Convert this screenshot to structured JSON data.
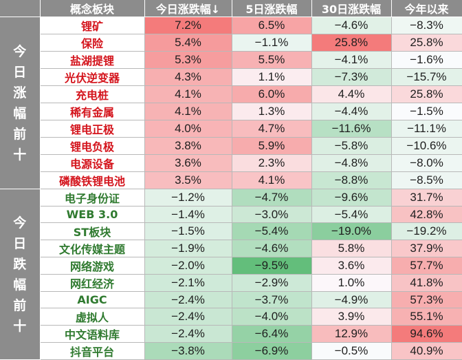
{
  "header": {
    "group": "",
    "name": "概念板块",
    "today": "今日涨跌幅↓",
    "d5": "5日涨跌幅",
    "d30": "30日涨跌幅",
    "ytd": "今年以来"
  },
  "groups": [
    {
      "label": [
        "今",
        "日",
        "涨",
        "幅",
        "前",
        "十"
      ],
      "direction": "up"
    },
    {
      "label": [
        "今",
        "日",
        "跌",
        "幅",
        "前",
        "十"
      ],
      "direction": "down"
    }
  ],
  "rows": [
    {
      "name": "锂矿",
      "today": "7.2%",
      "d5": "6.5%",
      "d30": "−4.6%",
      "ytd": "−8.3%",
      "v": [
        7.2,
        6.5,
        -4.6,
        -8.3
      ]
    },
    {
      "name": "保险",
      "today": "5.4%",
      "d5": "−1.1%",
      "d30": "25.8%",
      "ytd": "25.8%",
      "v": [
        5.4,
        -1.1,
        25.8,
        25.8
      ]
    },
    {
      "name": "盐湖提锂",
      "today": "5.3%",
      "d5": "5.5%",
      "d30": "−4.1%",
      "ytd": "−1.6%",
      "v": [
        5.3,
        5.5,
        -4.1,
        -1.6
      ]
    },
    {
      "name": "光伏逆变器",
      "today": "4.3%",
      "d5": "1.1%",
      "d30": "−7.3%",
      "ytd": "−15.7%",
      "v": [
        4.3,
        1.1,
        -7.3,
        -15.7
      ]
    },
    {
      "name": "充电桩",
      "today": "4.1%",
      "d5": "6.0%",
      "d30": "4.4%",
      "ytd": "25.8%",
      "v": [
        4.1,
        6.0,
        4.4,
        25.8
      ]
    },
    {
      "name": "稀有金属",
      "today": "4.1%",
      "d5": "1.3%",
      "d30": "−4.4%",
      "ytd": "−1.5%",
      "v": [
        4.1,
        1.3,
        -4.4,
        -1.5
      ]
    },
    {
      "name": "锂电正极",
      "today": "4.0%",
      "d5": "4.7%",
      "d30": "−11.6%",
      "ytd": "−11.1%",
      "v": [
        4.0,
        4.7,
        -11.6,
        -11.1
      ]
    },
    {
      "name": "锂电负极",
      "today": "3.8%",
      "d5": "5.9%",
      "d30": "−5.8%",
      "ytd": "−10.6%",
      "v": [
        3.8,
        5.9,
        -5.8,
        -10.6
      ]
    },
    {
      "name": "电源设备",
      "today": "3.6%",
      "d5": "2.3%",
      "d30": "−4.8%",
      "ytd": "−8.0%",
      "v": [
        3.6,
        2.3,
        -4.8,
        -8.0
      ]
    },
    {
      "name": "磷酸铁锂电池",
      "today": "3.5%",
      "d5": "4.1%",
      "d30": "−8.8%",
      "ytd": "−8.5%",
      "v": [
        3.5,
        4.1,
        -8.8,
        -8.5
      ]
    },
    {
      "name": "电子身份证",
      "today": "−1.2%",
      "d5": "−4.7%",
      "d30": "−9.6%",
      "ytd": "31.7%",
      "v": [
        -1.2,
        -4.7,
        -9.6,
        31.7
      ]
    },
    {
      "name": "WEB 3.0",
      "today": "−1.4%",
      "d5": "−3.0%",
      "d30": "−5.4%",
      "ytd": "42.8%",
      "v": [
        -1.4,
        -3.0,
        -5.4,
        42.8
      ]
    },
    {
      "name": "ST板块",
      "today": "−1.5%",
      "d5": "−5.4%",
      "d30": "−19.0%",
      "ytd": "−19.2%",
      "v": [
        -1.5,
        -5.4,
        -19.0,
        -19.2
      ]
    },
    {
      "name": "文化传媒主题",
      "today": "−1.9%",
      "d5": "−4.6%",
      "d30": "5.8%",
      "ytd": "37.9%",
      "v": [
        -1.9,
        -4.6,
        5.8,
        37.9
      ]
    },
    {
      "name": "网络游戏",
      "today": "−2.0%",
      "d5": "−9.5%",
      "d30": "3.6%",
      "ytd": "57.7%",
      "v": [
        -2.0,
        -9.5,
        3.6,
        57.7
      ]
    },
    {
      "name": "网红经济",
      "today": "−2.1%",
      "d5": "−2.9%",
      "d30": "1.0%",
      "ytd": "41.8%",
      "v": [
        -2.1,
        -2.9,
        1.0,
        41.8
      ]
    },
    {
      "name": "AIGC",
      "today": "−2.4%",
      "d5": "−3.7%",
      "d30": "−4.9%",
      "ytd": "57.3%",
      "v": [
        -2.4,
        -3.7,
        -4.9,
        57.3
      ]
    },
    {
      "name": "虚拟人",
      "today": "−2.4%",
      "d5": "−4.0%",
      "d30": "3.9%",
      "ytd": "55.1%",
      "v": [
        -2.4,
        -4.0,
        3.9,
        55.1
      ]
    },
    {
      "name": "中文语料库",
      "today": "−2.4%",
      "d5": "−6.4%",
      "d30": "12.9%",
      "ytd": "94.6%",
      "v": [
        -2.4,
        -6.4,
        12.9,
        94.6
      ]
    },
    {
      "name": "抖音平台",
      "today": "−3.8%",
      "d5": "−6.9%",
      "d30": "−0.5%",
      "ytd": "40.9%",
      "v": [
        -3.8,
        -6.9,
        -0.5,
        40.9
      ]
    }
  ],
  "colors": {
    "header_bg": "#8c8c8c",
    "up_text": "#d4141c",
    "down_text": "#2f7a2f",
    "pos_strong": "#f47b7b",
    "neg_strong": "#63be7b",
    "neutral": "#fcfcff"
  }
}
